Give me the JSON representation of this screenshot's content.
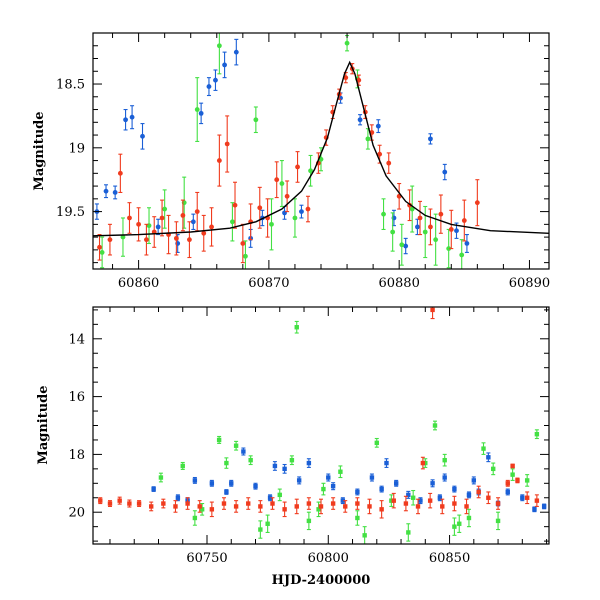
{
  "colors": {
    "blue": "#1a5fd6",
    "green": "#43e043",
    "red": "#f03b1e",
    "model": "#000000"
  },
  "chart_data": [
    {
      "type": "scatter",
      "title": "",
      "xlabel": "",
      "ylabel": "Magnitude",
      "xlim": [
        60856.5,
        60891.5
      ],
      "ylim": [
        19.95,
        18.1
      ],
      "y_inverted": true,
      "xticks": [
        60860,
        60870,
        60880,
        60890
      ],
      "yticks": [
        18.5,
        19,
        19.5
      ],
      "ytick_labels": [
        "18.5",
        "19",
        "19.5"
      ],
      "model_curve": {
        "type": "line",
        "peak_x": 60876.2,
        "peak_mag": 18.33,
        "baseline_mag": 19.72,
        "x": [
          60856.5,
          60860,
          60864,
          60867,
          60869,
          60871,
          60872.5,
          60873.5,
          60874.5,
          60875.2,
          60875.8,
          60876.2,
          60876.6,
          60877.2,
          60878,
          60879,
          60880.5,
          60882,
          60884,
          60887,
          60891.5
        ],
        "y": [
          19.69,
          19.68,
          19.66,
          19.63,
          19.58,
          19.48,
          19.34,
          19.17,
          18.92,
          18.65,
          18.42,
          18.33,
          18.42,
          18.66,
          18.98,
          19.22,
          19.42,
          19.53,
          19.6,
          19.65,
          19.67
        ]
      },
      "series": [
        {
          "color": "blue",
          "x": [
            60856.8,
            60857.5,
            60858.2,
            60859.0,
            60859.5,
            60860.3,
            60861.5,
            60863.0,
            60864.2,
            60864.8,
            60865.4,
            60865.9,
            60866.6,
            60867.5,
            60868.6,
            60869.5,
            60871.2,
            60872.5,
            60875.5,
            60877.0,
            60878.4,
            60879.6,
            60880.5,
            60881.4,
            60882.4,
            60883.5,
            60884.4,
            60885.2
          ],
          "y": [
            19.5,
            19.34,
            19.35,
            18.78,
            18.76,
            18.91,
            19.62,
            19.75,
            19.58,
            18.73,
            18.52,
            18.47,
            18.35,
            18.25,
            19.71,
            19.55,
            19.51,
            19.5,
            18.61,
            18.78,
            18.83,
            19.55,
            19.77,
            19.62,
            18.93,
            19.19,
            19.65,
            19.75
          ],
          "err": [
            0.06,
            0.05,
            0.05,
            0.08,
            0.09,
            0.1,
            0.06,
            0.07,
            0.06,
            0.08,
            0.07,
            0.08,
            0.1,
            0.1,
            0.07,
            0.06,
            0.05,
            0.05,
            0.04,
            0.04,
            0.05,
            0.06,
            0.06,
            0.06,
            0.04,
            0.06,
            0.06,
            0.07
          ]
        },
        {
          "color": "green",
          "x": [
            60857.2,
            60858.8,
            60860.8,
            60862.0,
            60863.5,
            60864.5,
            60866.2,
            60867.2,
            60868.2,
            60869.0,
            60870.2,
            60871.0,
            60872.0,
            60873.2,
            60874.0,
            60876.0,
            60876.8,
            60877.6,
            60878.8,
            60879.5,
            60880.2,
            60881.0,
            60882.0,
            60882.8,
            60883.8,
            60884.8
          ],
          "y": [
            19.82,
            19.7,
            19.61,
            19.48,
            19.43,
            18.7,
            18.2,
            19.58,
            19.85,
            18.78,
            19.6,
            19.28,
            19.55,
            19.18,
            19.09,
            18.18,
            18.46,
            18.93,
            19.52,
            19.66,
            19.76,
            19.48,
            19.66,
            19.72,
            19.79,
            19.84
          ],
          "err": [
            0.12,
            0.15,
            0.14,
            0.15,
            0.2,
            0.25,
            0.22,
            0.15,
            0.12,
            0.1,
            0.2,
            0.18,
            0.15,
            0.12,
            0.09,
            0.06,
            0.07,
            0.08,
            0.12,
            0.15,
            0.16,
            0.18,
            0.2,
            0.2,
            0.15,
            0.12
          ]
        },
        {
          "color": "red",
          "x": [
            60857.0,
            60857.8,
            60858.6,
            60859.3,
            60860.0,
            60860.6,
            60861.2,
            60861.8,
            60862.3,
            60862.9,
            60863.4,
            60863.9,
            60864.5,
            60865.0,
            60865.6,
            60866.2,
            60866.8,
            60867.4,
            60868.0,
            60868.6,
            60869.3,
            60869.9,
            60870.6,
            60871.4,
            60872.2,
            60873.0,
            60873.8,
            60874.4,
            60874.9,
            60875.4,
            60875.9,
            60876.4,
            60876.9,
            60877.4,
            60877.9,
            60878.5,
            60879.2,
            60880.0,
            60880.8,
            60881.6,
            60882.4,
            60883.2,
            60884.0,
            60885.0,
            60886.0
          ],
          "y": [
            19.78,
            19.72,
            19.2,
            19.55,
            19.6,
            19.72,
            19.66,
            19.55,
            19.68,
            19.71,
            19.53,
            19.72,
            19.5,
            19.67,
            19.62,
            19.1,
            18.97,
            19.45,
            19.75,
            19.58,
            19.47,
            19.55,
            19.25,
            19.38,
            19.15,
            19.48,
            19.12,
            18.92,
            18.72,
            18.58,
            18.45,
            18.38,
            18.47,
            18.72,
            18.88,
            19.05,
            19.12,
            19.38,
            19.45,
            19.55,
            19.62,
            19.52,
            19.64,
            19.57,
            19.43
          ],
          "err": [
            0.1,
            0.12,
            0.15,
            0.12,
            0.13,
            0.12,
            0.12,
            0.14,
            0.15,
            0.13,
            0.12,
            0.14,
            0.15,
            0.14,
            0.15,
            0.2,
            0.22,
            0.18,
            0.15,
            0.14,
            0.16,
            0.15,
            0.14,
            0.12,
            0.12,
            0.1,
            0.08,
            0.06,
            0.05,
            0.04,
            0.04,
            0.04,
            0.04,
            0.05,
            0.06,
            0.07,
            0.08,
            0.1,
            0.12,
            0.13,
            0.14,
            0.15,
            0.15,
            0.16,
            0.18
          ]
        }
      ]
    },
    {
      "type": "scatter",
      "title": "",
      "xlabel": "HJD-2400000",
      "ylabel": "Magnitude",
      "xlim": [
        60703,
        60891
      ],
      "ylim": [
        21.1,
        12.9
      ],
      "y_inverted": true,
      "xticks": [
        60750,
        60800,
        60850
      ],
      "yticks": [
        14,
        16,
        18,
        20
      ],
      "ytick_labels": [
        "14",
        "16",
        "18",
        "20"
      ],
      "series": [
        {
          "color": "green",
          "x": [
            60731,
            60740,
            60748,
            60755,
            60762,
            60768,
            60775,
            60780,
            60785,
            60787,
            60792,
            60798,
            60805,
            60812,
            60820,
            60826,
            60833,
            60840,
            60844,
            60848,
            60852,
            60858,
            60864,
            60870,
            60876,
            60882,
            60886,
            60745,
            60758,
            60772,
            60796,
            60815,
            60835,
            60854,
            60868
          ],
          "y": [
            18.8,
            18.4,
            19.9,
            17.5,
            17.7,
            18.2,
            20.4,
            19.4,
            18.2,
            13.6,
            20.3,
            19.2,
            18.6,
            20.2,
            17.6,
            19.6,
            20.7,
            18.3,
            17.0,
            18.2,
            20.5,
            20.2,
            17.8,
            20.3,
            18.7,
            18.9,
            17.3,
            20.2,
            18.3,
            20.6,
            19.9,
            20.8,
            19.5,
            20.4,
            18.5
          ],
          "err": [
            0.15,
            0.12,
            0.2,
            0.12,
            0.15,
            0.15,
            0.3,
            0.2,
            0.15,
            0.2,
            0.3,
            0.2,
            0.2,
            0.25,
            0.15,
            0.2,
            0.3,
            0.15,
            0.15,
            0.2,
            0.3,
            0.3,
            0.2,
            0.3,
            0.2,
            0.2,
            0.15,
            0.25,
            0.18,
            0.3,
            0.25,
            0.3,
            0.25,
            0.3,
            0.2
          ]
        },
        {
          "color": "blue",
          "x": [
            60728,
            60738,
            60745,
            60752,
            60758,
            60765,
            60770,
            60776,
            60782,
            60788,
            60792,
            60800,
            60806,
            60812,
            60818,
            60824,
            60828,
            60833,
            60838,
            60843,
            60848,
            60852,
            60858,
            60862,
            60866,
            60870,
            60874,
            60880,
            60885,
            60889,
            60742,
            60760,
            60778,
            60802,
            60822,
            60846,
            60860
          ],
          "y": [
            19.2,
            19.5,
            18.9,
            19.0,
            19.3,
            17.9,
            19.1,
            19.5,
            18.5,
            18.9,
            18.3,
            18.8,
            19.6,
            19.3,
            18.8,
            18.3,
            19.0,
            19.4,
            19.6,
            19.0,
            18.8,
            19.2,
            19.4,
            19.3,
            18.1,
            19.7,
            19.3,
            19.5,
            19.9,
            19.8,
            19.6,
            19.0,
            18.4,
            19.1,
            19.2,
            19.5,
            18.9
          ],
          "err": [
            0.08,
            0.1,
            0.1,
            0.1,
            0.08,
            0.12,
            0.1,
            0.1,
            0.15,
            0.12,
            0.15,
            0.12,
            0.1,
            0.1,
            0.12,
            0.15,
            0.1,
            0.12,
            0.1,
            0.12,
            0.12,
            0.1,
            0.1,
            0.1,
            0.15,
            0.08,
            0.1,
            0.1,
            0.08,
            0.08,
            0.1,
            0.1,
            0.15,
            0.12,
            0.1,
            0.1,
            0.12
          ]
        },
        {
          "color": "red",
          "x": [
            60706,
            60710,
            60714,
            60718,
            60722,
            60727,
            60732,
            60737,
            60742,
            60747,
            60752,
            60757,
            60762,
            60767,
            60772,
            60777,
            60782,
            60787,
            60792,
            60797,
            60802,
            60807,
            60812,
            60817,
            60822,
            60827,
            60832,
            60837,
            60839,
            60842,
            60847,
            60852,
            60857,
            60862,
            60866,
            60870,
            60874,
            60876,
            60878,
            60882,
            60886,
            60843
          ],
          "y": [
            19.6,
            19.7,
            19.6,
            19.7,
            19.7,
            19.8,
            19.7,
            19.8,
            19.7,
            19.8,
            19.9,
            19.7,
            19.8,
            19.7,
            19.8,
            19.7,
            19.9,
            19.8,
            19.7,
            19.8,
            19.7,
            19.8,
            19.7,
            19.8,
            19.9,
            19.6,
            19.7,
            19.8,
            18.3,
            19.6,
            19.8,
            19.7,
            19.8,
            19.3,
            19.5,
            19.7,
            19.0,
            18.4,
            18.9,
            19.5,
            19.6,
            13.0
          ],
          "err": [
            0.1,
            0.1,
            0.12,
            0.12,
            0.1,
            0.15,
            0.15,
            0.2,
            0.2,
            0.2,
            0.25,
            0.2,
            0.2,
            0.2,
            0.2,
            0.2,
            0.25,
            0.25,
            0.2,
            0.25,
            0.2,
            0.2,
            0.2,
            0.25,
            0.3,
            0.25,
            0.25,
            0.25,
            0.2,
            0.25,
            0.25,
            0.25,
            0.25,
            0.2,
            0.2,
            0.2,
            0.1,
            0.06,
            0.08,
            0.2,
            0.2,
            0.3
          ]
        }
      ]
    }
  ]
}
